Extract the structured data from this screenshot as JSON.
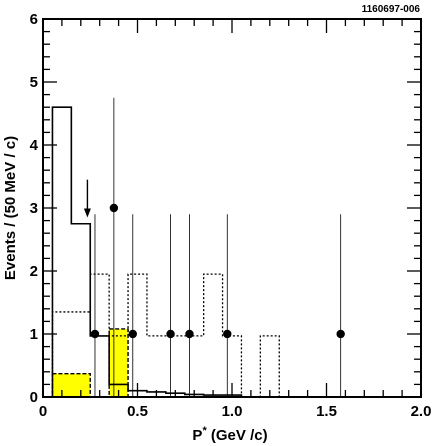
{
  "figure_id": "1160697-006",
  "colors": {
    "signal_fill": "#ffff00",
    "line": "#000000",
    "background": "#ffffff"
  },
  "chart_data": {
    "type": "histogram",
    "xlabel": "P* (GeV /c)",
    "xlabel_main": "P",
    "xlabel_superscript": "*",
    "xlabel_unit": " (GeV /c)",
    "ylabel": "Events / (50 MeV / c)",
    "xlim": [
      0,
      2.0
    ],
    "ylim": [
      0,
      6
    ],
    "x_ticks": [
      {
        "value": 0,
        "label": "0"
      },
      {
        "value": 0.5,
        "label": "0.5"
      },
      {
        "value": 1.0,
        "label": "1.0"
      },
      {
        "value": 1.5,
        "label": "1.5"
      },
      {
        "value": 2.0,
        "label": "2.0"
      }
    ],
    "y_ticks": [
      {
        "value": 0,
        "label": "0"
      },
      {
        "value": 1,
        "label": "1"
      },
      {
        "value": 2,
        "label": "2"
      },
      {
        "value": 3,
        "label": "3"
      },
      {
        "value": 4,
        "label": "4"
      },
      {
        "value": 5,
        "label": "5"
      },
      {
        "value": 6,
        "label": "6"
      }
    ],
    "grid": false,
    "data_points": {
      "style": "filled-circle-with-vertical-error-bar",
      "points": [
        {
          "x": 0.275,
          "y": 1,
          "err_low": 1,
          "err_high": 1.9
        },
        {
          "x": 0.375,
          "y": 3,
          "err_low": 3,
          "err_high": 1.75
        },
        {
          "x": 0.475,
          "y": 1,
          "err_low": 1,
          "err_high": 1.9
        },
        {
          "x": 0.675,
          "y": 1,
          "err_low": 1,
          "err_high": 1.9
        },
        {
          "x": 0.775,
          "y": 1,
          "err_low": 1,
          "err_high": 1.9
        },
        {
          "x": 0.975,
          "y": 1,
          "err_low": 1,
          "err_high": 1.9
        },
        {
          "x": 1.575,
          "y": 1,
          "err_low": 1,
          "err_high": 1.9
        }
      ]
    },
    "solid_histogram": {
      "style": "solid-step",
      "bins": [
        {
          "x0": 0.05,
          "x1": 0.15,
          "y": 4.6
        },
        {
          "x0": 0.15,
          "x1": 0.25,
          "y": 2.75
        },
        {
          "x0": 0.25,
          "x1": 0.35,
          "y": 0.97
        },
        {
          "x0": 0.35,
          "x1": 0.45,
          "y": 0.2
        },
        {
          "x0": 0.45,
          "x1": 0.55,
          "y": 0.1
        },
        {
          "x0": 0.55,
          "x1": 0.65,
          "y": 0.08
        },
        {
          "x0": 0.65,
          "x1": 0.75,
          "y": 0.06
        },
        {
          "x0": 0.75,
          "x1": 0.85,
          "y": 0.04
        },
        {
          "x0": 0.85,
          "x1": 1.05,
          "y": 0.03
        }
      ]
    },
    "dotted_histogram": {
      "style": "dotted-step",
      "bins": [
        {
          "x0": 0.05,
          "x1": 0.25,
          "y": 1.35
        },
        {
          "x0": 0.25,
          "x1": 0.35,
          "y": 1.95
        },
        {
          "x0": 0.35,
          "x1": 0.45,
          "y": 0.97
        },
        {
          "x0": 0.45,
          "x1": 0.55,
          "y": 1.95
        },
        {
          "x0": 0.55,
          "x1": 0.85,
          "y": 0.97
        },
        {
          "x0": 0.85,
          "x1": 0.95,
          "y": 1.95
        },
        {
          "x0": 0.95,
          "x1": 1.05,
          "y": 0.97
        },
        {
          "x0": 1.05,
          "x1": 1.15,
          "y": 0
        },
        {
          "x0": 1.15,
          "x1": 1.25,
          "y": 0.97
        }
      ]
    },
    "shaded_bins": {
      "style": "yellow-filled-dashed-outline",
      "bins": [
        {
          "x0": 0.05,
          "x1": 0.25,
          "y": 0.37
        },
        {
          "x0": 0.35,
          "x1": 0.45,
          "y": 1.08
        }
      ]
    },
    "annotations": [
      {
        "type": "arrow-down",
        "x": 0.235,
        "y_from": 3.45,
        "y_to": 2.85
      }
    ]
  }
}
